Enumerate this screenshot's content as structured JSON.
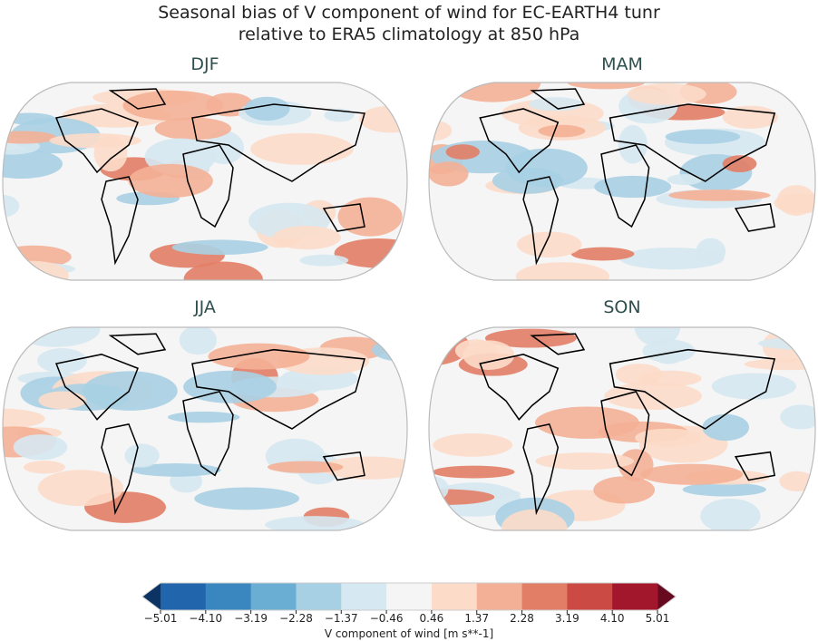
{
  "title": {
    "line1": "Seasonal bias of V component of wind for EC-EARTH4 tunr",
    "line2": "relative to ERA5 climatology at 850 hPa"
  },
  "panels": [
    {
      "title": "DJF"
    },
    {
      "title": "MAM"
    },
    {
      "title": "JJA"
    },
    {
      "title": "SON"
    }
  ],
  "colorbar": {
    "label": "V component of wind [m s**-1]",
    "ticks": [
      "−5.01",
      "−4.10",
      "−3.19",
      "−2.28",
      "−1.37",
      "−0.46",
      "0.46",
      "1.37",
      "2.28",
      "3.19",
      "4.10",
      "5.01"
    ],
    "colors": [
      "#2166ac",
      "#3a87bf",
      "#6aaed3",
      "#a8d0e4",
      "#d6e8f1",
      "#f5f5f5",
      "#fcdbc9",
      "#f4b096",
      "#e27e66",
      "#cb4a43",
      "#a3172d"
    ],
    "under_color": "#0b3464",
    "over_color": "#670a1f"
  }
}
